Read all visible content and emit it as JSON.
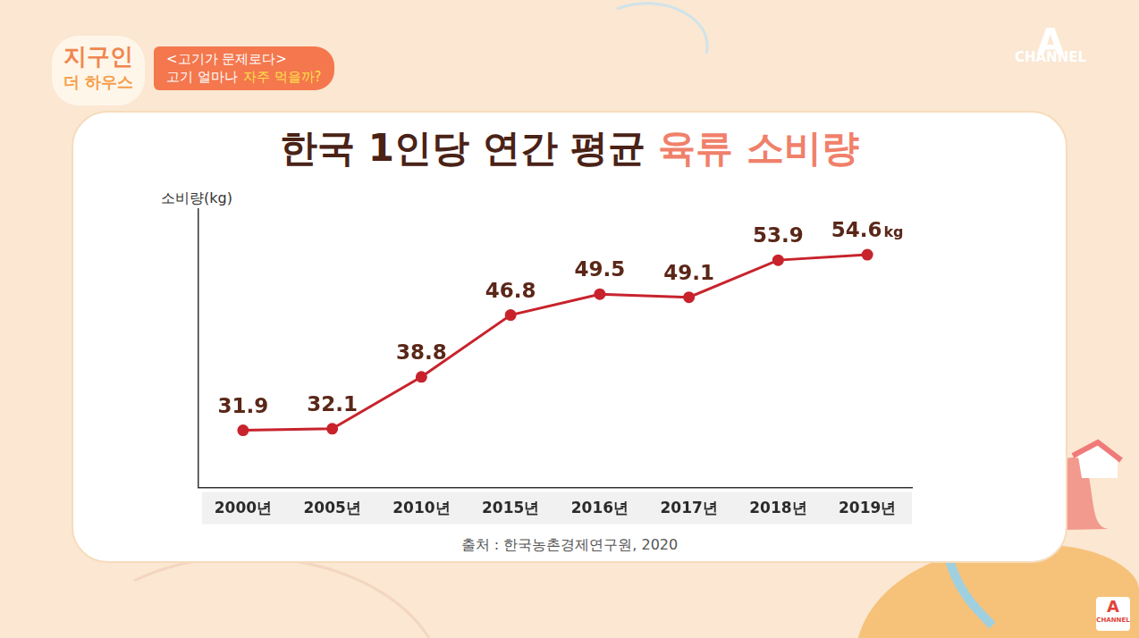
{
  "page": {
    "logo": [
      "지구인",
      "더 하우스"
    ],
    "segment": "<고기가 문제로다>",
    "question": [
      "고기 얼마나",
      "자주 먹을까?"
    ],
    "brand_mark": "A",
    "brand_name": "CHANNEL"
  },
  "chart_data": {
    "type": "line",
    "title": [
      "한국 1인당 연간 평균",
      "육류 소비량"
    ],
    "y_label": "소비량(kg)",
    "categories": [
      "2000년",
      "2005년",
      "2010년",
      "2015년",
      "2016년",
      "2017년",
      "2018년",
      "2019년"
    ],
    "values": [
      31.9,
      32.1,
      38.8,
      46.8,
      49.5,
      49.1,
      53.9,
      54.6
    ],
    "value_labels": [
      "31.9",
      "32.1",
      "38.8",
      "46.8",
      "49.5",
      "49.1",
      "53.9",
      "54.6kg"
    ],
    "color": "#c8232c",
    "marker": "circle",
    "line_style": "solid",
    "ylim": [
      24.5,
      60.5
    ],
    "grid": false,
    "data_labels": true,
    "tick_labels": "x",
    "source": "출처 : 한국농촌경제연구원, 2020"
  }
}
